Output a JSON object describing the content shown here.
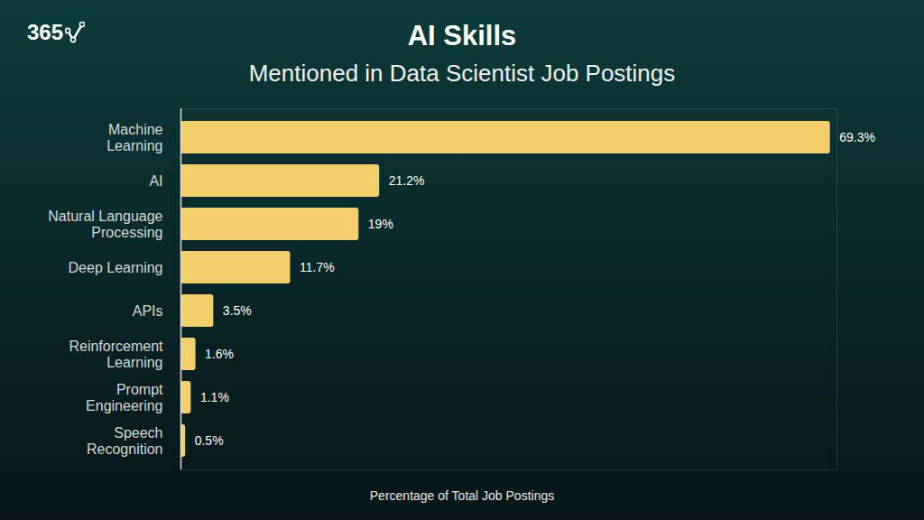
{
  "chart_data": {
    "type": "bar",
    "orientation": "horizontal",
    "title": "AI Skills",
    "subtitle": "Mentioned in Data Scientist Job Postings",
    "xlabel": "Percentage of Total Job Postings",
    "annotations": [
      "365"
    ],
    "categories": [
      "Machine Learning",
      "AI",
      "Natural Language Processing",
      "Deep Learning",
      "APIs",
      "Reinforcement Learning",
      "Prompt Engineering",
      "Speech Recognition"
    ],
    "values": [
      69.3,
      21.2,
      19,
      11.7,
      3.5,
      1.6,
      1.1,
      0.5
    ],
    "value_labels": [
      "69.3%",
      "21.2%",
      "19%",
      "11.7%",
      "3.5%",
      "1.6%",
      "1.1%",
      "0.5%"
    ],
    "color": "#f2cf6b",
    "xlim": [
      0,
      70
    ],
    "xticks": [],
    "grid": false,
    "data_labels": true,
    "tick_labels": "y"
  }
}
